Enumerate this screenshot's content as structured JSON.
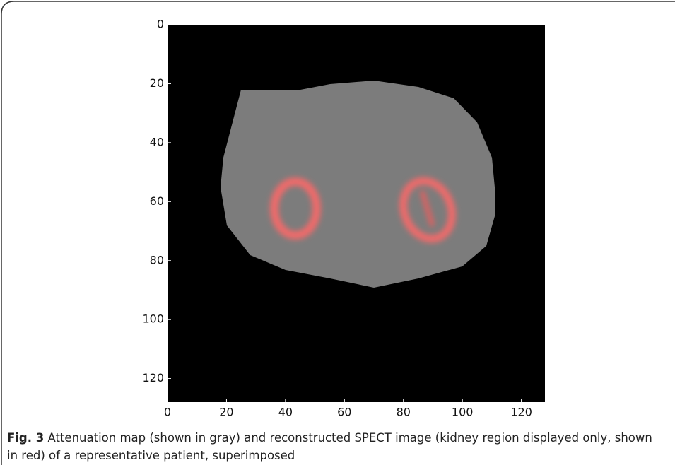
{
  "chart_data": {
    "type": "image",
    "xlim": [
      0,
      128
    ],
    "ylim": [
      0,
      128
    ],
    "xticks": [
      0,
      20,
      40,
      60,
      80,
      100,
      120
    ],
    "yticks": [
      0,
      20,
      40,
      60,
      80,
      100,
      120
    ]
  },
  "caption": {
    "label": "Fig. 3",
    "text": "Attenuation map (shown in gray) and reconstructed SPECT image (kidney region displayed only, shown in red) of a representative patient, superimposed"
  }
}
